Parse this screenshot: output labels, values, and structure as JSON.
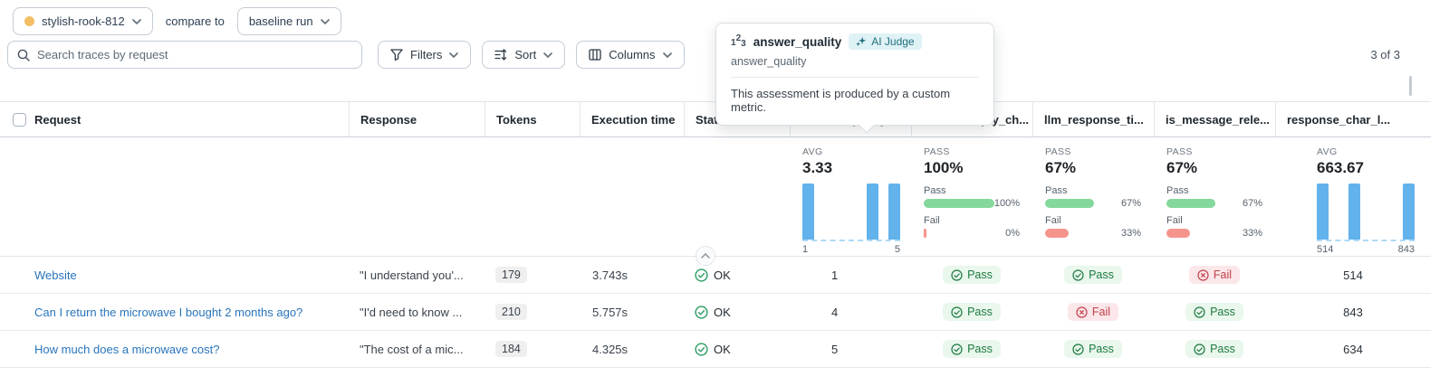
{
  "run_bar": {
    "run_name": "stylish-rook-812",
    "run_dot_color": "#F2BE63",
    "compare_label": "compare to",
    "baseline_value": "baseline run"
  },
  "toolbar": {
    "search_placeholder": "Search traces by request",
    "filters_label": "Filters",
    "sort_label": "Sort",
    "columns_label": "Columns",
    "result_count": "3 of 3"
  },
  "tooltip": {
    "title": "answer_quality",
    "badge_label": "AI Judge",
    "subtitle": "answer_quality",
    "description": "This assessment is produced by a custom metric."
  },
  "table": {
    "headers": {
      "request": "Request",
      "response": "Response",
      "tokens": "Tokens",
      "execution_time": "Execution time",
      "state": "State",
      "answer_quality": "answer_quality",
      "is_not_empty": "is_not_empty_ch...",
      "llm_response": "llm_response_ti...",
      "is_message": "is_message_rele...",
      "response_char": "response_char_l..."
    },
    "summary": {
      "answer_quality": {
        "stat_label": "AVG",
        "stat_value": "3.33",
        "hist": {
          "values": [
            1,
            4,
            5
          ],
          "axis_min": "1",
          "axis_max": "5",
          "bars_left_pct": [
            0,
            66,
            88
          ]
        }
      },
      "is_not_empty": {
        "stat_label": "PASS",
        "stat_value": "100%",
        "pass_label": "Pass",
        "pass_pct": "100%",
        "pass_width": "100%",
        "fail_label": "Fail",
        "fail_pct": "0%",
        "fail_width": "4%"
      },
      "llm_response": {
        "stat_label": "PASS",
        "stat_value": "67%",
        "pass_label": "Pass",
        "pass_pct": "67%",
        "pass_width": "67%",
        "fail_label": "Fail",
        "fail_pct": "33%",
        "fail_width": "33%"
      },
      "is_message": {
        "stat_label": "PASS",
        "stat_value": "67%",
        "pass_label": "Pass",
        "pass_pct": "67%",
        "pass_width": "67%",
        "fail_label": "Fail",
        "fail_pct": "33%",
        "fail_width": "33%"
      },
      "response_char": {
        "stat_label": "AVG",
        "stat_value": "663.67",
        "hist": {
          "values": [
            514,
            634,
            843
          ],
          "axis_min": "514",
          "axis_max": "843",
          "bars_left_pct": [
            0,
            32,
            88
          ]
        }
      }
    },
    "rows": [
      {
        "request": "Website",
        "response": "\"I understand you'...",
        "tokens": "179",
        "execution_time": "3.743s",
        "state": "OK",
        "answer_quality": "1",
        "is_not_empty": "Pass",
        "llm_response": "Pass",
        "is_message": "Fail",
        "response_char": "514"
      },
      {
        "request": "Can I return the microwave I bought 2 months ago?",
        "response": "\"I'd need to know ...",
        "tokens": "210",
        "execution_time": "5.757s",
        "state": "OK",
        "answer_quality": "4",
        "is_not_empty": "Pass",
        "llm_response": "Fail",
        "is_message": "Pass",
        "response_char": "843"
      },
      {
        "request": "How much does a microwave cost?",
        "response": "\"The cost of a mic...",
        "tokens": "184",
        "execution_time": "4.325s",
        "state": "OK",
        "answer_quality": "5",
        "is_not_empty": "Pass",
        "llm_response": "Pass",
        "is_message": "Pass",
        "response_char": "634"
      }
    ]
  },
  "colors": {
    "link_blue": "#2874BB",
    "hist_bar_blue": "#62B2EC",
    "pass_green": "#84D89B",
    "fail_red": "#F5948C",
    "pass_badge_bg": "#E9F7ED",
    "pass_badge_text": "#1D7A3F",
    "fail_badge_bg": "#FBE7E9",
    "fail_badge_text": "#C23F4A",
    "ai_judge_bg": "#DFF2F6",
    "ai_judge_text": "#20707C",
    "run_dot": "#F2BE63"
  }
}
